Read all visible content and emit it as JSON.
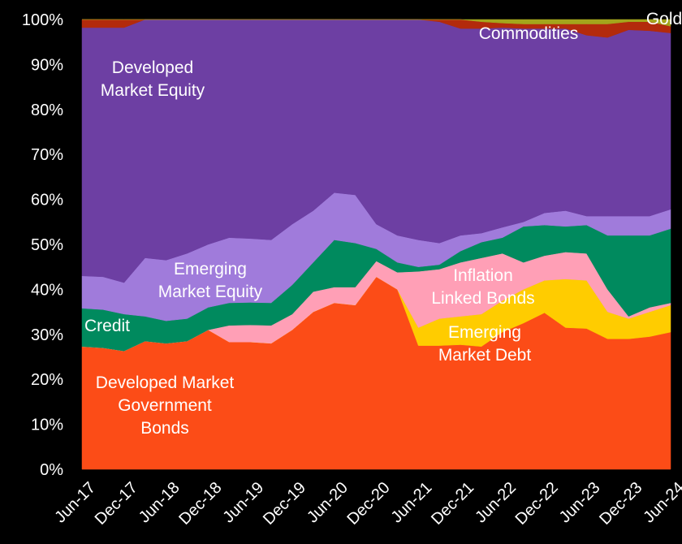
{
  "chart_data": {
    "type": "stacked_area",
    "categories": [
      "Jun-17",
      null,
      "Dec-17",
      null,
      "Jun-18",
      null,
      "Dec-18",
      null,
      "Jun-19",
      null,
      "Dec-19",
      null,
      "Jun-20",
      null,
      "Dec-20",
      null,
      "Jun-21",
      null,
      "Dec-21",
      null,
      "Jun-22",
      null,
      "Dec-22",
      null,
      "Jun-23",
      null,
      "Dec-23",
      null,
      "Jun-24"
    ],
    "ylim": [
      0,
      100
    ],
    "yticks": [
      {
        "value": 0,
        "label": "0%"
      },
      {
        "value": 10,
        "label": "10%"
      },
      {
        "value": 20,
        "label": "20%"
      },
      {
        "value": 30,
        "label": "30%"
      },
      {
        "value": 40,
        "label": "40%"
      },
      {
        "value": 50,
        "label": "50%"
      },
      {
        "value": 60,
        "label": "60%"
      },
      {
        "value": 70,
        "label": "70%"
      },
      {
        "value": 80,
        "label": "80%"
      },
      {
        "value": 90,
        "label": "90%"
      },
      {
        "value": 100,
        "label": "100%"
      }
    ],
    "series": [
      {
        "name": "Developed Market\nGovernment\nBonds",
        "color": "#fc4c17",
        "values": [
          27.3,
          27,
          26.3,
          28.5,
          28,
          28.5,
          31,
          28.3,
          28.3,
          28,
          31,
          35,
          37,
          36.5,
          42.8,
          40,
          27.5,
          27.5,
          27.7,
          27.3,
          30.5,
          32.5,
          34.8,
          31.5,
          31.3,
          29,
          29,
          29.5,
          30.5
        ]
      },
      {
        "name": "Emerging\nMarket Debt",
        "color": "#ffcc00",
        "values": [
          0,
          0,
          0,
          0,
          0,
          0,
          0,
          0,
          0,
          0,
          0,
          0,
          0,
          0,
          0,
          0,
          4,
          6,
          6.3,
          7.2,
          7,
          7.5,
          7.2,
          10.8,
          10.7,
          6,
          4.5,
          5.5,
          6
        ]
      },
      {
        "name": "Inflation\nLinked Bonds",
        "color": "#ff9fb6",
        "values": [
          0,
          0,
          0,
          0,
          0,
          0,
          0,
          3.7,
          3.8,
          4,
          3.5,
          4.5,
          3.5,
          4,
          3.5,
          3.8,
          12.5,
          11,
          12,
          12.5,
          10.5,
          6,
          5.5,
          6,
          6,
          5,
          0.5,
          1,
          0.5
        ]
      },
      {
        "name": "Credit",
        "color": "#008a5e",
        "values": [
          8.5,
          8.5,
          8.2,
          5.5,
          5,
          5,
          5,
          5,
          5,
          5,
          6.5,
          6.5,
          10.5,
          9.8,
          2.7,
          2.2,
          1,
          1,
          2.5,
          3.5,
          3.5,
          8,
          6.8,
          5.7,
          6.3,
          12,
          18,
          16,
          16.5
        ]
      },
      {
        "name": "Emerging\nMarket Equity",
        "color": "#a07bdb",
        "values": [
          7.2,
          7.3,
          7,
          13,
          13.5,
          14.5,
          14,
          14.5,
          14.2,
          14,
          13.5,
          11.5,
          10.5,
          10.7,
          5.5,
          6,
          6,
          4.8,
          3.5,
          2,
          2.3,
          1,
          2.7,
          3.5,
          2,
          4.3,
          4.3,
          4.3,
          4.3
        ]
      },
      {
        "name": "Developed\nMarket Equity",
        "color": "#6d3fa3",
        "values": [
          55.2,
          55.4,
          56.7,
          53,
          53.5,
          52,
          50,
          48.5,
          48.7,
          49,
          45.5,
          42.5,
          38.5,
          39,
          45.5,
          48,
          49,
          49.2,
          46,
          45.5,
          44.4,
          43,
          41,
          40.5,
          40.2,
          39.7,
          41.4,
          41.2,
          39.2
        ]
      },
      {
        "name": "Commodities",
        "color": "#b32a0c",
        "values": [
          1.8,
          1.8,
          1.8,
          0,
          0,
          0,
          0,
          0,
          0,
          0,
          0,
          0,
          0,
          0,
          0,
          0,
          0,
          0.5,
          2,
          1.5,
          1,
          1,
          1,
          1,
          2.5,
          3,
          1.8,
          2,
          1.5
        ]
      },
      {
        "name": "Gold",
        "color": "#a3a51c",
        "values": [
          0,
          0,
          0,
          0,
          0,
          0,
          0,
          0,
          0,
          0,
          0,
          0,
          0,
          0,
          0,
          0,
          0,
          0,
          0,
          0.5,
          0.8,
          1,
          1,
          1,
          1,
          1,
          0.5,
          0.5,
          1.5
        ]
      }
    ]
  }
}
